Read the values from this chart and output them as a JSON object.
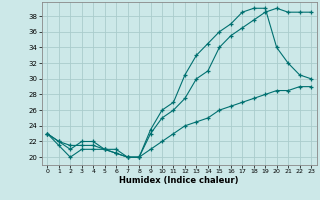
{
  "xlabel": "Humidex (Indice chaleur)",
  "bg_color": "#cce8e8",
  "grid_color": "#aacccc",
  "line_color": "#007070",
  "xlim": [
    -0.5,
    23.5
  ],
  "ylim": [
    19.0,
    39.8
  ],
  "yticks": [
    20,
    22,
    24,
    26,
    28,
    30,
    32,
    34,
    36,
    38
  ],
  "xticks": [
    0,
    1,
    2,
    3,
    4,
    5,
    6,
    7,
    8,
    9,
    10,
    11,
    12,
    13,
    14,
    15,
    16,
    17,
    18,
    19,
    20,
    21,
    22,
    23
  ],
  "line1_x": [
    0,
    1,
    2,
    3,
    4,
    5,
    6,
    7,
    8,
    9,
    10,
    11,
    12,
    13,
    14,
    15,
    16,
    17,
    18,
    19,
    20,
    21,
    22,
    23
  ],
  "line1_y": [
    23,
    21.5,
    20,
    21,
    21,
    21,
    20.5,
    20,
    20,
    23,
    25,
    26,
    27.5,
    30,
    31,
    34,
    35.5,
    36.5,
    37.5,
    38.5,
    39,
    38.5,
    38.5,
    38.5
  ],
  "line2_x": [
    0,
    1,
    2,
    3,
    4,
    5,
    6,
    7,
    8,
    9,
    10,
    11,
    12,
    13,
    14,
    15,
    16,
    17,
    18,
    19,
    20,
    21,
    22,
    23
  ],
  "line2_y": [
    23,
    22,
    21.5,
    21.5,
    21.5,
    21,
    21,
    20,
    20,
    23.5,
    26,
    27,
    30.5,
    33,
    34.5,
    36,
    37,
    38.5,
    39,
    39,
    34,
    32,
    30.5,
    30
  ],
  "line3_x": [
    0,
    1,
    2,
    3,
    4,
    5,
    6,
    7,
    8,
    9,
    10,
    11,
    12,
    13,
    14,
    15,
    16,
    17,
    18,
    19,
    20,
    21,
    22,
    23
  ],
  "line3_y": [
    23,
    22,
    21,
    22,
    22,
    21,
    20.5,
    20,
    20,
    21,
    22,
    23,
    24,
    24.5,
    25,
    26,
    26.5,
    27,
    27.5,
    28,
    28.5,
    28.5,
    29,
    29
  ]
}
